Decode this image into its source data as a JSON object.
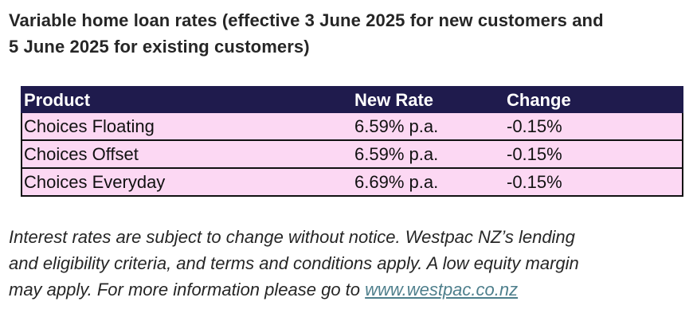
{
  "heading": {
    "line1": "Variable home loan rates (effective 3 June 2025 for new customers and",
    "line2": "5 June 2025 for existing customers)"
  },
  "table": {
    "headers": [
      "Product",
      "New Rate",
      "Change"
    ],
    "rows": [
      [
        "Choices Floating",
        "6.59% p.a.",
        "-0.15%"
      ],
      [
        "Choices Offset",
        "6.59% p.a.",
        "-0.15%"
      ],
      [
        "Choices Everyday",
        "6.69% p.a.",
        "-0.15%"
      ]
    ],
    "header_bg": "#1f1b4d",
    "row_bg": "#fcd8f3"
  },
  "disclaimer": {
    "line1": "Interest rates are subject to change without notice. Westpac NZ’s lending",
    "line2": "and eligibility criteria, and terms and conditions apply. A low equity margin",
    "line3_prefix": "may apply. For more information please go to ",
    "link_text": "www.westpac.co.nz"
  }
}
